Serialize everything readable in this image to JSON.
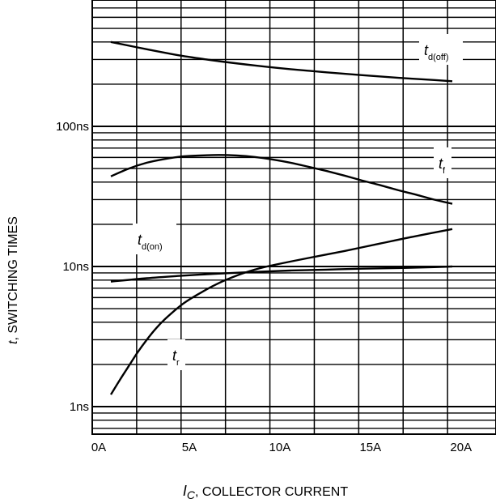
{
  "chart_data": {
    "type": "line",
    "xlabel_symbol": "I",
    "xlabel_sub": "C",
    "xlabel_text": ", COLLECTOR CURRENT",
    "ylabel_symbol": "t",
    "ylabel_text": ", SWITCHING TIMES",
    "x_scale": "linear",
    "y_scale": "log",
    "xlim": [
      0,
      20
    ],
    "ylim": [
      0.7,
      600
    ],
    "grid": true,
    "x_ticks": [
      {
        "value": 0,
        "label": "0A"
      },
      {
        "value": 5,
        "label": "5A"
      },
      {
        "value": 10,
        "label": "10A"
      },
      {
        "value": 15,
        "label": "15A"
      },
      {
        "value": 20,
        "label": "20A"
      }
    ],
    "y_ticks": [
      {
        "value": 1,
        "label": "1ns"
      },
      {
        "value": 10,
        "label": "10ns"
      },
      {
        "value": 100,
        "label": "100ns"
      }
    ],
    "units": {
      "x": "A",
      "y": "ns"
    },
    "series": [
      {
        "name": "t",
        "sub": "d(off)",
        "color": "#000000",
        "x": [
          1,
          3,
          5,
          7,
          9,
          11,
          13,
          15,
          17,
          19,
          20
        ],
        "y": [
          400,
          355,
          318,
          292,
          272,
          256,
          243,
          232,
          222,
          214,
          210
        ]
      },
      {
        "name": "t",
        "sub": "f",
        "color": "#000000",
        "x": [
          1,
          2,
          3,
          4,
          5,
          6,
          7,
          8,
          9,
          10,
          11,
          12,
          13,
          14,
          15,
          16,
          17,
          18,
          19,
          20
        ],
        "y": [
          44,
          50,
          55,
          58.5,
          61,
          62,
          62.5,
          62,
          60.5,
          58,
          55,
          51.5,
          48,
          44.5,
          41,
          38,
          35,
          32.5,
          30,
          28
        ]
      },
      {
        "name": "t",
        "sub": "d(on)",
        "color": "#000000",
        "x": [
          1,
          3,
          5,
          7,
          9,
          11,
          13,
          15,
          17,
          19,
          20
        ],
        "y": [
          7.8,
          8.25,
          8.6,
          8.9,
          9.15,
          9.35,
          9.5,
          9.65,
          9.75,
          9.9,
          10
        ]
      },
      {
        "name": "t",
        "sub": "r",
        "color": "#000000",
        "x": [
          1,
          1.5,
          2,
          2.5,
          3,
          3.5,
          4,
          5,
          6,
          7,
          8,
          9,
          10,
          12,
          14,
          16,
          18,
          20
        ],
        "y": [
          1.22,
          1.55,
          1.95,
          2.45,
          3.0,
          3.6,
          4.2,
          5.4,
          6.5,
          7.6,
          8.6,
          9.5,
          10.2,
          11.5,
          12.9,
          14.6,
          16.5,
          18.5
        ]
      }
    ]
  }
}
